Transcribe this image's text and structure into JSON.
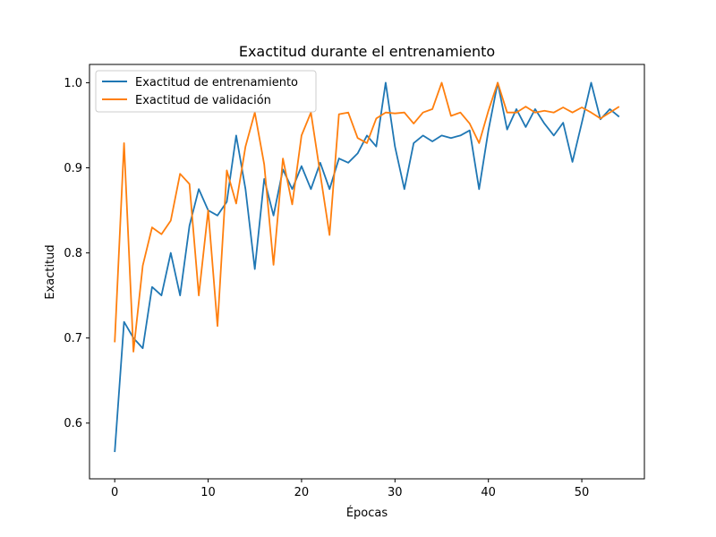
{
  "chart_data": {
    "type": "line",
    "title": "Exactitud durante el entrenamiento",
    "xlabel": "Épocas",
    "ylabel": "Exactitud",
    "xlim": [
      -2.7,
      56.7
    ],
    "ylim": [
      0.5345,
      1.0215
    ],
    "xticks": [
      0,
      10,
      20,
      30,
      40,
      50
    ],
    "yticks": [
      0.6,
      0.7,
      0.8,
      0.9,
      1.0
    ],
    "ytick_labels": [
      "0.6",
      "0.7",
      "0.8",
      "0.9",
      "1.0"
    ],
    "grid": false,
    "legend_position": "top-left",
    "x": [
      0,
      1,
      2,
      3,
      4,
      5,
      6,
      7,
      8,
      9,
      10,
      11,
      12,
      13,
      14,
      15,
      16,
      17,
      18,
      19,
      20,
      21,
      22,
      23,
      24,
      25,
      26,
      27,
      28,
      29,
      30,
      31,
      32,
      33,
      34,
      35,
      36,
      37,
      38,
      39,
      40,
      41,
      42,
      43,
      44,
      45,
      46,
      47,
      48,
      49,
      50,
      51,
      52,
      53,
      54
    ],
    "series": [
      {
        "name": "Exactitud de entrenamiento",
        "color": "#1f77b4",
        "values": [
          0.566,
          0.719,
          0.7,
          0.688,
          0.76,
          0.75,
          0.8,
          0.75,
          0.832,
          0.875,
          0.85,
          0.844,
          0.86,
          0.938,
          0.875,
          0.781,
          0.887,
          0.844,
          0.898,
          0.875,
          0.902,
          0.875,
          0.906,
          0.875,
          0.911,
          0.906,
          0.917,
          0.938,
          0.925,
          1.0,
          0.925,
          0.875,
          0.929,
          0.938,
          0.931,
          0.938,
          0.935,
          0.938,
          0.944,
          0.875,
          0.944,
          1.0,
          0.945,
          0.969,
          0.948,
          0.969,
          0.952,
          0.938,
          0.953,
          0.907,
          0.953,
          1.0,
          0.957,
          0.969,
          0.96
        ]
      },
      {
        "name": "Exactitud de validación",
        "color": "#ff7f0e",
        "values": [
          0.695,
          0.929,
          0.684,
          0.785,
          0.83,
          0.822,
          0.838,
          0.893,
          0.881,
          0.75,
          0.85,
          0.714,
          0.897,
          0.858,
          0.925,
          0.965,
          0.904,
          0.786,
          0.911,
          0.857,
          0.938,
          0.965,
          0.893,
          0.821,
          0.963,
          0.965,
          0.935,
          0.929,
          0.958,
          0.965,
          0.964,
          0.965,
          0.952,
          0.965,
          0.969,
          1.0,
          0.961,
          0.965,
          0.952,
          0.929,
          0.967,
          1.0,
          0.965,
          0.965,
          0.972,
          0.965,
          0.967,
          0.965,
          0.971,
          0.965,
          0.971,
          0.965,
          0.958,
          0.965,
          0.972
        ]
      }
    ]
  }
}
